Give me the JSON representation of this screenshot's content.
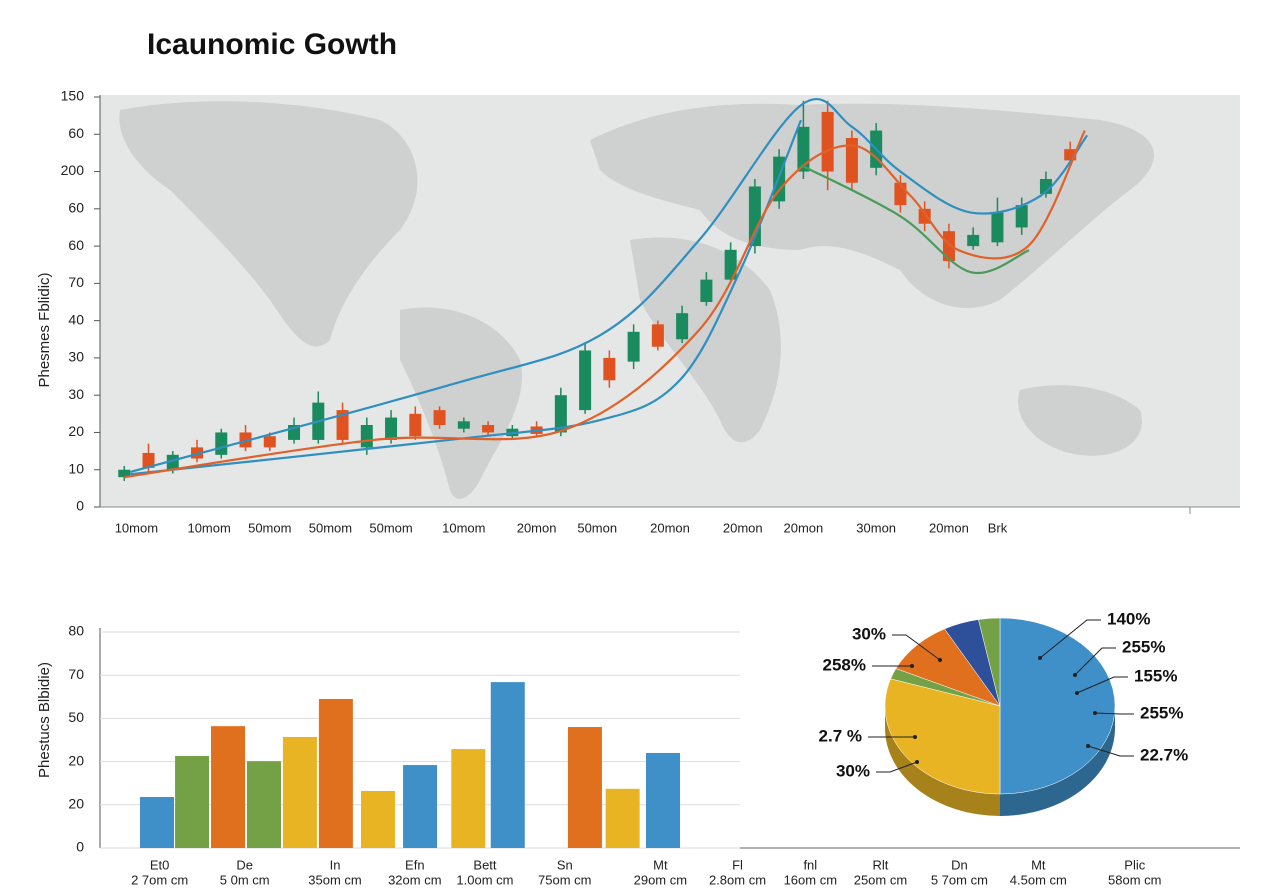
{
  "chart_data": [
    {
      "type": "candlestick",
      "title": "Icaunomic Gowth",
      "y_label": "Phesmes Fblidic)",
      "x": [
        0,
        1,
        2,
        3,
        4,
        5,
        6,
        7,
        8,
        9,
        10,
        11,
        12,
        13,
        14,
        15,
        16,
        17,
        18,
        19,
        20,
        21,
        22,
        23,
        24,
        25,
        26,
        27,
        28,
        29,
        30,
        31,
        32,
        33,
        34,
        35,
        36,
        37,
        38,
        39
      ],
      "open": [
        8,
        14.5,
        10,
        16,
        14,
        20,
        19,
        18,
        18,
        26,
        16,
        18,
        25,
        26,
        21,
        22,
        19,
        21.6,
        20,
        26,
        40,
        39,
        49,
        45,
        55,
        61,
        70,
        82,
        90,
        106,
        99,
        91,
        87,
        80,
        74,
        70,
        71,
        75,
        84,
        96
      ],
      "high": [
        11,
        17,
        15,
        18,
        21,
        22,
        20,
        24,
        31,
        28,
        24,
        26,
        27,
        27,
        24,
        23,
        22,
        23,
        32,
        44,
        42,
        49,
        50,
        54,
        63,
        71,
        88,
        96,
        109,
        109,
        101,
        103,
        89,
        82,
        76,
        75,
        83,
        83,
        90,
        98
      ],
      "low": [
        7,
        9,
        9,
        12,
        13,
        15,
        15,
        17,
        17,
        17,
        14,
        17,
        18,
        21,
        20,
        19,
        18,
        19,
        19,
        25,
        32,
        37,
        42,
        44,
        54,
        60,
        68,
        80,
        88,
        85,
        85,
        89,
        79,
        74,
        64,
        69,
        70,
        73,
        83,
        92
      ],
      "close": [
        10,
        10.5,
        14,
        13,
        20,
        16,
        16,
        22,
        28,
        18,
        22,
        24,
        19,
        22,
        23,
        20,
        21,
        19.6,
        30,
        42,
        34,
        47,
        43,
        52,
        61,
        69,
        86,
        94,
        102,
        90,
        87,
        101,
        81,
        76,
        66,
        73,
        79,
        81,
        88,
        93
      ],
      "up_color": "#1a8a5f",
      "down_color": "#e0521f",
      "lines": [
        {
          "color": "#2f8fc0",
          "x": [
            0.25,
            13.4,
            19.6,
            23.7,
            27.9,
            30,
            32,
            34.9,
            37.8,
            39.7
          ],
          "values": [
            9.4,
            32.7,
            46,
            71.6,
            107.8,
            102,
            90,
            79,
            83.6,
            99.7
          ]
        },
        {
          "color": "#2f8fc0",
          "x": [
            0.25,
            13.4,
            19.6,
            22.9,
            25.4,
            27.9
          ],
          "values": [
            8.8,
            18,
            23.3,
            34,
            63.5,
            103.8
          ]
        },
        {
          "color": "#e0622a",
          "x": [
            0,
            10.3,
            18.1,
            23.7,
            27,
            30,
            32.4,
            34.4,
            37.3,
            39.6
          ],
          "values": [
            8,
            18,
            20.6,
            47.5,
            85,
            97,
            83.6,
            68.9,
            70.2,
            101
          ]
        },
        {
          "color": "#4a9a5a",
          "x": [
            27.9,
            32,
            34.9,
            37.3
          ],
          "values": [
            91.7,
            78,
            63,
            68.9
          ]
        }
      ],
      "xlim": [
        -1,
        46
      ],
      "xticks": [
        {
          "value": 0.5,
          "label": "10mom"
        },
        {
          "value": 3.5,
          "label": "10mom"
        },
        {
          "value": 6,
          "label": "50mom"
        },
        {
          "value": 8.5,
          "label": "50mom"
        },
        {
          "value": 11,
          "label": "50mom"
        },
        {
          "value": 14,
          "label": "10mom"
        },
        {
          "value": 17,
          "label": "20mon"
        },
        {
          "value": 19.5,
          "label": "50mon"
        },
        {
          "value": 22.5,
          "label": "20mon"
        },
        {
          "value": 25.5,
          "label": "20mon"
        },
        {
          "value": 28,
          "label": "20mon"
        },
        {
          "value": 31,
          "label": "30mon"
        },
        {
          "value": 34,
          "label": "20mon"
        },
        {
          "value": 36,
          "label": "Brk"
        }
      ],
      "ylim": [
        0,
        110
      ],
      "yticks": [
        0,
        10,
        20,
        30,
        {
          "value": 40,
          "label": "30"
        },
        {
          "value": 50,
          "label": "40"
        },
        {
          "value": 60,
          "label": "70"
        },
        {
          "value": 70,
          "label": "60"
        },
        {
          "value": 80,
          "label": "60"
        },
        {
          "value": 90,
          "label": "200"
        },
        {
          "value": 100,
          "label": "60"
        },
        {
          "value": 110,
          "label": "150"
        }
      ]
    },
    {
      "type": "bar",
      "y_label": "Phestucs Blbidie)",
      "x": [
        0.65,
        1.05,
        1.46,
        1.87,
        2.28,
        2.69,
        3.17,
        3.65,
        4.2,
        4.65,
        5.53,
        5.96,
        6.42
      ],
      "values": [
        11.8,
        21.3,
        28.2,
        20.1,
        25.7,
        34.5,
        13.2,
        19.2,
        22.9,
        38.4,
        28,
        13.7,
        22
      ],
      "colors": [
        "#3f8fc8",
        "#74a046",
        "#e0701e",
        "#74a046",
        "#e8b424",
        "#e0701e",
        "#e8b424",
        "#3f8fc8",
        "#e8b424",
        "#3f8fc8",
        "#e0701e",
        "#e8b424",
        "#3f8fc8"
      ],
      "xlim": [
        0,
        13
      ],
      "xticks": [
        {
          "value": 0.68,
          "label": "Et0"
        },
        {
          "value": 1.65,
          "label": "De"
        },
        {
          "value": 2.68,
          "label": "In"
        },
        {
          "value": 3.59,
          "label": "Efn"
        },
        {
          "value": 4.39,
          "label": "Bett"
        },
        {
          "value": 5.3,
          "label": "Sn"
        },
        {
          "value": 6.39,
          "label": "Mt"
        },
        {
          "value": 7.27,
          "label": "Fl"
        },
        {
          "value": 8.1,
          "label": "fnl"
        },
        {
          "value": 8.9,
          "label": "Rlt"
        },
        {
          "value": 9.8,
          "label": "Dn"
        },
        {
          "value": 10.7,
          "label": "Mt"
        },
        {
          "value": 11.8,
          "label": "Plic"
        }
      ],
      "xtick_sublabels": [
        "2 7om cm",
        "5 0m cm",
        "35om cm",
        "32om cm",
        "1.0om cm",
        "75om cm",
        "29om cm",
        "2.8om cm",
        "16om cm",
        "25om cm",
        "5 7om cm",
        "4.5om cm",
        "58om cm"
      ],
      "ylim": [
        0,
        50
      ],
      "yticks": [
        0,
        {
          "value": 10,
          "label": "20"
        },
        20,
        {
          "value": 30,
          "label": "50"
        },
        {
          "value": 40,
          "label": "70"
        },
        {
          "value": 50,
          "label": "80"
        }
      ],
      "grid": true
    },
    {
      "type": "pie",
      "values": [
        50,
        30,
        2,
        10,
        5,
        3
      ],
      "colors": [
        "#3f8fc8",
        "#e8b424",
        "#74a046",
        "#e0701e",
        "#2e4f9a",
        "#74a046"
      ],
      "callouts": [
        "140%",
        "255%",
        "155%",
        "255%",
        "22.7%",
        "30%",
        "258%",
        "2.7 %",
        "30%"
      ]
    }
  ]
}
